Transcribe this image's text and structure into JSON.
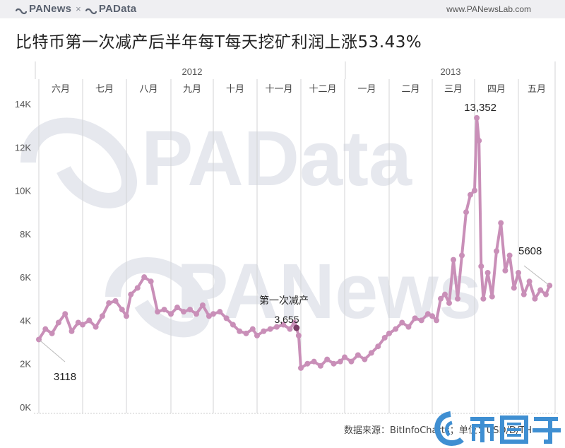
{
  "header": {
    "brand_left": "PANews",
    "brand_sep": "×",
    "brand_right": "PAData",
    "site": "www.PANewsLab.com"
  },
  "title": "比特币第一次减产后半年每T每天挖矿利润上涨53.43%",
  "footer": {
    "source": "数据来源：BitInfoCharts；单位：USD/D/TH"
  },
  "watermarks": [
    "PAData",
    "PANews",
    "币圈子"
  ],
  "colors": {
    "line": "#c98fb8",
    "highlight_point": "#7a3d66",
    "gridline": "#d3d3d6",
    "watermark": "#e6e8ee",
    "brand_blue": "#3f8fd2"
  },
  "chart_data": {
    "type": "line",
    "title": "比特币第一次减产后半年每T每天挖矿利润上涨53.43%",
    "xlabel": "",
    "ylabel": "USD/D/TH",
    "ylim": [
      0,
      14000
    ],
    "yticks": [
      "0K",
      "2K",
      "4K",
      "6K",
      "8K",
      "10K",
      "12K",
      "14K"
    ],
    "years": [
      {
        "label": "2012",
        "months": [
          "六月",
          "七月",
          "八月",
          "九月",
          "十月",
          "十一月",
          "十二月"
        ]
      },
      {
        "label": "2013",
        "months": [
          "一月",
          "二月",
          "三月",
          "四月",
          "五月"
        ]
      }
    ],
    "categories": [
      "六月",
      "七月",
      "八月",
      "九月",
      "十月",
      "十一月",
      "十二月",
      "一月",
      "二月",
      "三月",
      "四月",
      "五月"
    ],
    "grid": true,
    "annotations": [
      {
        "label": "3118",
        "value": 3118,
        "position": "start"
      },
      {
        "label": "第一次减产",
        "value": 3655,
        "display": "3,655",
        "position": "halving (Nov 28, 2012)"
      },
      {
        "label": "13,352",
        "value": 13352,
        "position": "peak (April 2013)"
      },
      {
        "label": "5608",
        "value": 5608,
        "position": "end"
      }
    ],
    "series": [
      {
        "name": "每T每天挖矿利润",
        "x_month_index": [
          0.0,
          0.15,
          0.3,
          0.45,
          0.6,
          0.75,
          0.9,
          1.0,
          1.15,
          1.3,
          1.45,
          1.6,
          1.75,
          1.9,
          2.0,
          2.1,
          2.25,
          2.4,
          2.55,
          2.7,
          2.85,
          3.0,
          3.15,
          3.3,
          3.45,
          3.6,
          3.75,
          3.9,
          4.0,
          4.15,
          4.3,
          4.45,
          4.6,
          4.75,
          4.9,
          5.0,
          5.15,
          5.3,
          5.45,
          5.6,
          5.75,
          5.85,
          5.9,
          5.95,
          6.0,
          6.15,
          6.3,
          6.45,
          6.6,
          6.75,
          6.9,
          7.0,
          7.15,
          7.3,
          7.45,
          7.6,
          7.75,
          7.9,
          8.0,
          8.15,
          8.3,
          8.45,
          8.6,
          8.75,
          8.9,
          9.0,
          9.1,
          9.2,
          9.3,
          9.4,
          9.5,
          9.6,
          9.7,
          9.8,
          9.9,
          10.0,
          10.05,
          10.1,
          10.15,
          10.2,
          10.3,
          10.4,
          10.5,
          10.6,
          10.7,
          10.8,
          10.9,
          11.0,
          11.15,
          11.3,
          11.45,
          11.6,
          11.75,
          11.85
        ],
        "values": [
          3118,
          3600,
          3400,
          3900,
          4300,
          3500,
          3900,
          3800,
          4000,
          3700,
          4200,
          4800,
          4900,
          4500,
          4200,
          5200,
          5500,
          6000,
          5800,
          4400,
          4500,
          4300,
          4600,
          4400,
          4500,
          4300,
          4700,
          4200,
          4300,
          4400,
          4100,
          3800,
          3500,
          3400,
          3600,
          3300,
          3500,
          3600,
          3700,
          3800,
          3600,
          3900,
          3655,
          3300,
          1800,
          2000,
          2100,
          1900,
          2200,
          2000,
          2100,
          2300,
          2100,
          2400,
          2200,
          2500,
          2800,
          3200,
          3400,
          3600,
          3900,
          3700,
          4100,
          4000,
          4300,
          4200,
          4000,
          5000,
          5200,
          4800,
          6800,
          5000,
          7000,
          9000,
          9800,
          10000,
          13352,
          12300,
          6500,
          5000,
          6200,
          5100,
          7200,
          8500,
          6300,
          7000,
          5500,
          6200,
          5200,
          5800,
          5000,
          5400,
          5200,
          5608
        ]
      }
    ]
  }
}
